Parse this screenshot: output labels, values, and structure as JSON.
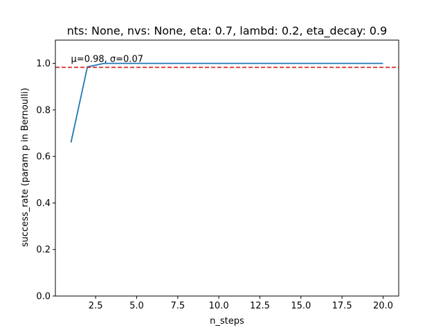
{
  "chart_data": {
    "type": "line",
    "title": "nts: None, nvs: None, eta: 0.7, lambd: 0.2, eta_decay: 0.9",
    "xlabel": "n_steps",
    "ylabel": "success_rate (param p in Bernoulli)",
    "xlim": [
      0.05,
      20.95
    ],
    "ylim": [
      0.0,
      1.1
    ],
    "xticks": [
      2.5,
      5.0,
      7.5,
      10.0,
      12.5,
      15.0,
      17.5,
      20.0
    ],
    "xtick_labels": [
      "2.5",
      "5.0",
      "7.5",
      "10.0",
      "12.5",
      "15.0",
      "17.5",
      "20.0"
    ],
    "yticks": [
      0.0,
      0.2,
      0.4,
      0.6,
      0.8,
      1.0
    ],
    "ytick_labels": [
      "0.0",
      "0.2",
      "0.4",
      "0.6",
      "0.8",
      "1.0"
    ],
    "series": [
      {
        "color": "#1f77b4",
        "x": [
          1,
          2,
          3,
          4,
          5,
          6,
          7,
          8,
          9,
          10,
          11,
          12,
          13,
          14,
          15,
          16,
          17,
          18,
          19,
          20
        ],
        "y": [
          0.66,
          0.985,
          1.0,
          1.0,
          1.0,
          1.0,
          1.0,
          1.0,
          1.0,
          1.0,
          1.0,
          1.0,
          1.0,
          1.0,
          1.0,
          1.0,
          1.0,
          1.0,
          1.0,
          1.0
        ]
      }
    ],
    "hline": {
      "y": 0.983,
      "color": "#d62728",
      "style": "dashed"
    },
    "annotation": {
      "text": "μ=0.98, σ=0.07",
      "x": 1.0,
      "y": 1.0
    },
    "grid": false
  }
}
